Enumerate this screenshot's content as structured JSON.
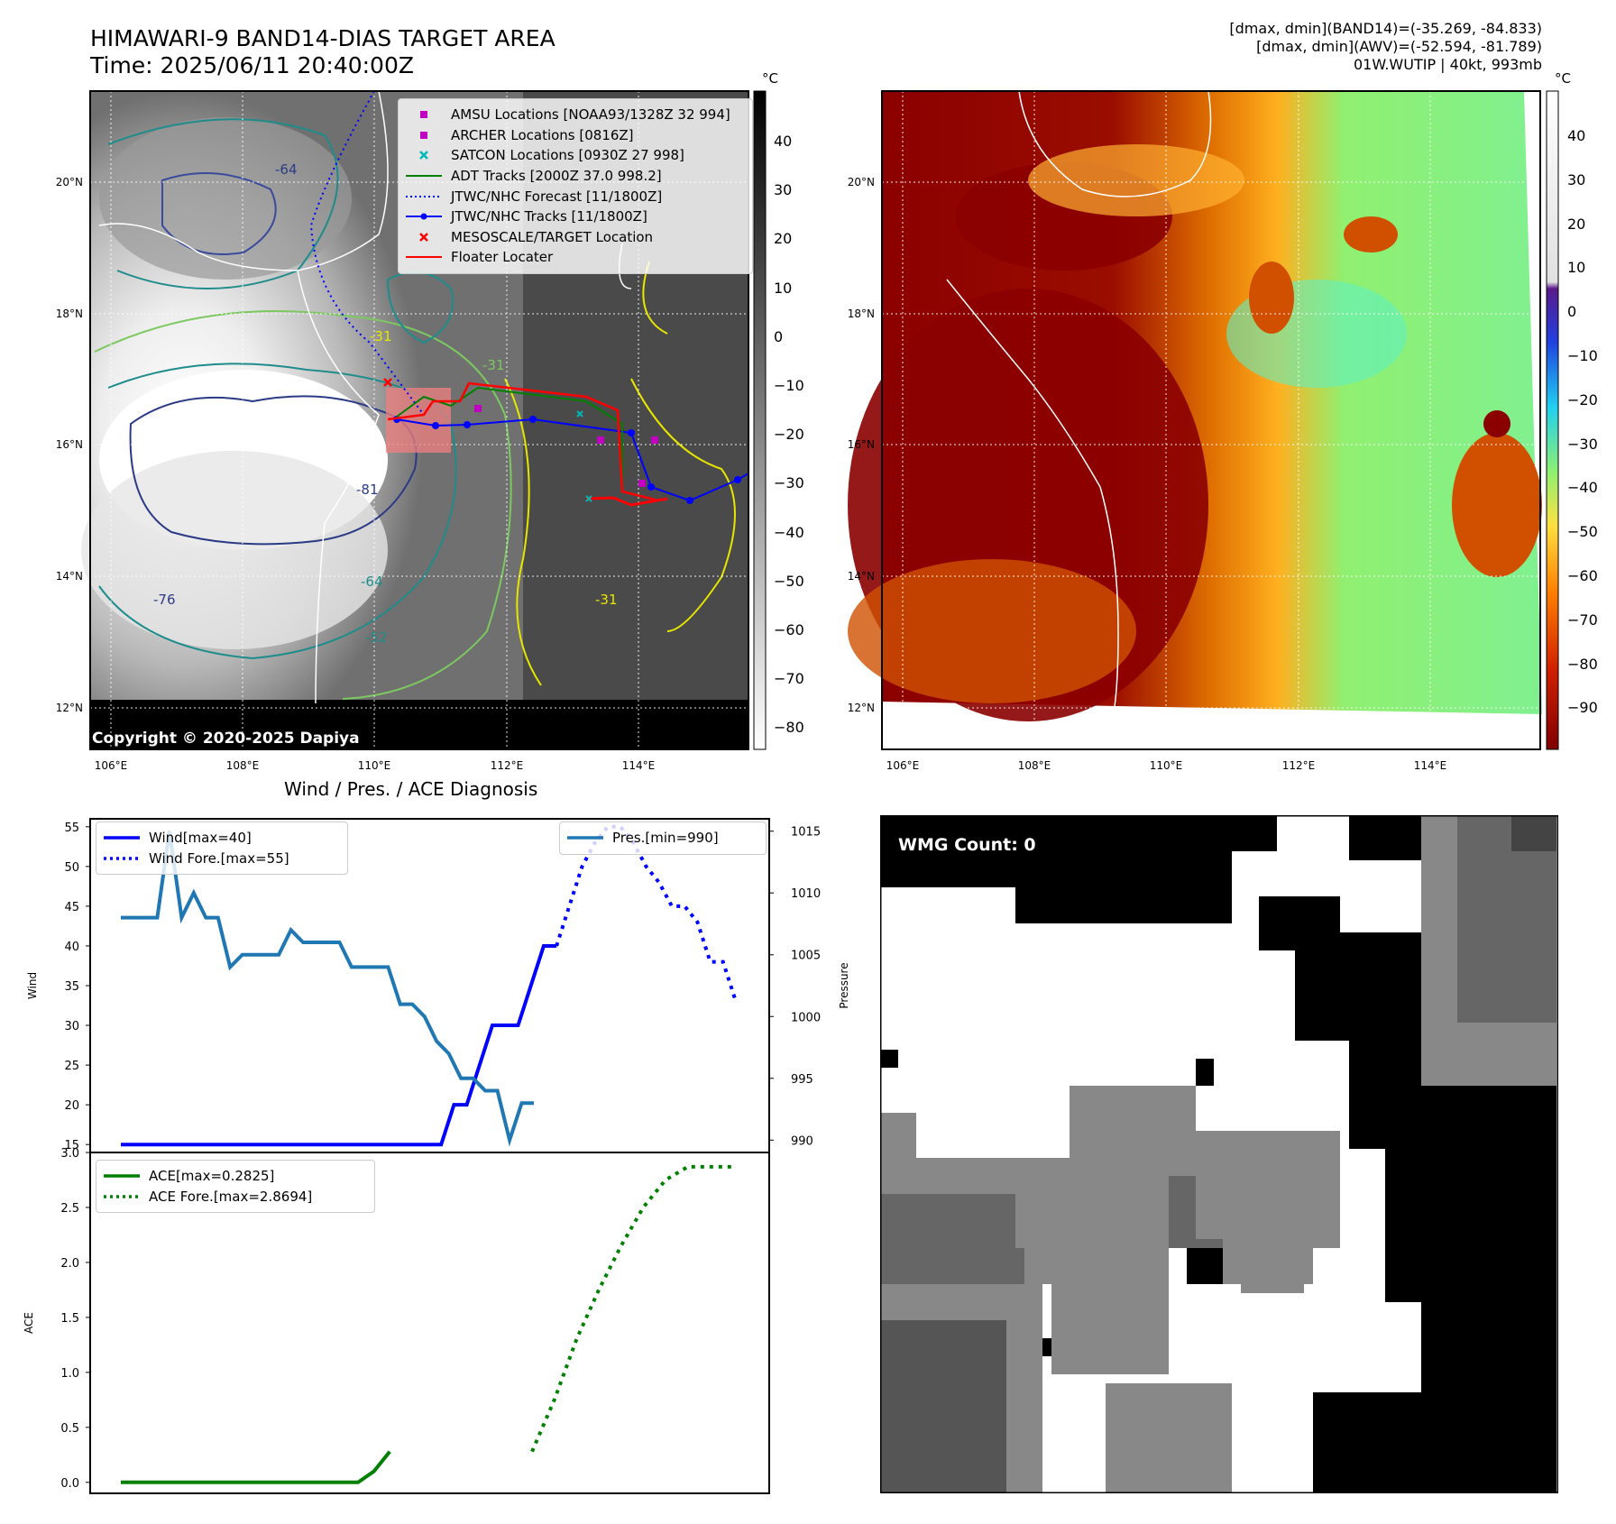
{
  "header": {
    "title_line1": "HIMAWARI-9 BAND14-DIAS TARGET AREA",
    "title_line2": "Time: 2025/06/11 20:40:00Z",
    "stats_line1": "[dmax, dmin](BAND14)=(-35.269, -84.833)",
    "stats_line2": "[dmax, dmin](AWV)=(-52.594, -81.789)",
    "stats_line3": "01W.WUTIP | 40kt, 993mb"
  },
  "map_left": {
    "lat_ticks": [
      "20°N",
      "18°N",
      "16°N",
      "14°N",
      "12°N"
    ],
    "lon_ticks": [
      "106°E",
      "108°E",
      "110°E",
      "112°E",
      "114°E"
    ],
    "colorbar_unit": "°C",
    "colorbar_ticks": [
      "40",
      "30",
      "20",
      "10",
      "0",
      "−10",
      "−20",
      "−30",
      "−40",
      "−50",
      "−60",
      "−70",
      "−80"
    ],
    "copyright": "Copyright © 2020-2025 Dapiya",
    "contour_labels": [
      "-64",
      "-31",
      "-31",
      "-81",
      "-76",
      "-64",
      "-52",
      "-31"
    ],
    "legend": [
      {
        "label": "AMSU Locations [NOAA93/1328Z 32 994]",
        "key": "square",
        "color": "#c000c0"
      },
      {
        "label": "ARCHER Locations [0816Z]",
        "key": "square",
        "color": "#c000c0"
      },
      {
        "label": "SATCON Locations [0930Z 27 998]",
        "key": "x",
        "color": "#00b8b8"
      },
      {
        "label": "ADT Tracks [2000Z 37.0 998.2]",
        "key": "line",
        "color": "#008000"
      },
      {
        "label": "JTWC/NHC Forecast [11/1800Z]",
        "key": "dotted",
        "color": "#0000ff"
      },
      {
        "label": "JTWC/NHC Tracks [11/1800Z]",
        "key": "line-dot",
        "color": "#0000ff"
      },
      {
        "label": "MESOSCALE/TARGET Location",
        "key": "x",
        "color": "#ff0000"
      },
      {
        "label": "Floater Locater",
        "key": "line",
        "color": "#ff0000"
      }
    ]
  },
  "map_right": {
    "lat_ticks": [
      "20°N",
      "18°N",
      "16°N",
      "14°N",
      "12°N"
    ],
    "lon_ticks": [
      "106°E",
      "108°E",
      "110°E",
      "112°E",
      "114°E"
    ],
    "colorbar_unit": "°C",
    "colorbar_ticks": [
      "40",
      "30",
      "20",
      "10",
      "0",
      "−10",
      "−20",
      "−30",
      "−40",
      "−50",
      "−60",
      "−70",
      "−80",
      "−90"
    ]
  },
  "wmg": {
    "count_label": "WMG Count: 0"
  },
  "chart_data": [
    {
      "type": "line",
      "title": "Wind / Pres. / ACE Diagnosis",
      "ylabel": "Wind",
      "y2label": "Pressure",
      "ylim": [
        14,
        56
      ],
      "y2lim": [
        989,
        1016
      ],
      "yticks": [
        15,
        20,
        25,
        30,
        35,
        40,
        45,
        50,
        55
      ],
      "y2ticks": [
        990,
        995,
        1000,
        1005,
        1010,
        1015
      ],
      "series": [
        {
          "name": "Wind[max=40]",
          "color": "#0000ff",
          "style": "solid",
          "x": [
            0,
            1,
            2,
            3,
            4,
            5,
            6,
            7,
            8,
            9,
            10,
            11,
            12,
            13,
            14,
            15,
            16,
            17,
            18,
            19,
            20,
            21,
            22,
            23,
            24,
            25,
            26,
            27,
            28,
            29,
            30,
            31,
            32,
            33,
            34
          ],
          "values": [
            15,
            15,
            15,
            15,
            15,
            15,
            15,
            15,
            15,
            15,
            15,
            15,
            15,
            15,
            15,
            15,
            15,
            15,
            15,
            15,
            15,
            15,
            15,
            15,
            15,
            15,
            20,
            20,
            25,
            30,
            30,
            30,
            35,
            40,
            40
          ]
        },
        {
          "name": "Wind Fore.[max=55]",
          "color": "#0000ff",
          "style": "dotted",
          "x": [
            34,
            35,
            36,
            37,
            38,
            39,
            40,
            41,
            42,
            43,
            44,
            45,
            46,
            47,
            48
          ],
          "values": [
            40,
            45,
            50,
            53,
            55,
            55,
            53,
            50,
            48,
            45,
            45,
            43,
            38,
            38,
            33
          ]
        },
        {
          "name": "Pres.[min=990]",
          "color": "#1f77b4",
          "style": "solid",
          "axis": "right",
          "x": [
            0,
            1,
            2,
            3,
            4,
            5,
            6,
            7,
            8,
            9,
            10,
            11,
            12,
            13,
            14,
            15,
            16,
            17,
            18,
            19,
            20,
            21,
            22,
            23,
            24,
            25,
            26,
            27,
            28,
            29,
            30,
            31,
            32,
            33,
            34
          ],
          "values": [
            1008,
            1008,
            1008,
            1008,
            1015,
            1008,
            1010,
            1008,
            1008,
            1004,
            1005,
            1005,
            1005,
            1005,
            1007,
            1006,
            1006,
            1006,
            1006,
            1004,
            1004,
            1004,
            1004,
            1001,
            1001,
            1000,
            998,
            997,
            995,
            995,
            994,
            994,
            990,
            993,
            993
          ]
        }
      ]
    },
    {
      "type": "line",
      "ylabel": "ACE",
      "ylim": [
        -0.1,
        3.0
      ],
      "yticks": [
        0.0,
        0.5,
        1.0,
        1.5,
        2.0,
        2.5,
        3.0
      ],
      "series": [
        {
          "name": "ACE[max=0.2825]",
          "color": "#008000",
          "style": "solid",
          "x": [
            0,
            4,
            8,
            12,
            16,
            20,
            24,
            28,
            30,
            32,
            34
          ],
          "values": [
            0,
            0,
            0,
            0,
            0,
            0,
            0,
            0,
            0,
            0.1,
            0.28
          ]
        },
        {
          "name": "ACE Fore.[max=2.8694]",
          "color": "#008000",
          "style": "dotted",
          "x": [
            34,
            36,
            38,
            40,
            42,
            44,
            46,
            48,
            50,
            52
          ],
          "values": [
            0.28,
            0.75,
            1.3,
            1.75,
            2.15,
            2.5,
            2.75,
            2.87,
            2.87,
            2.87
          ]
        }
      ]
    }
  ]
}
